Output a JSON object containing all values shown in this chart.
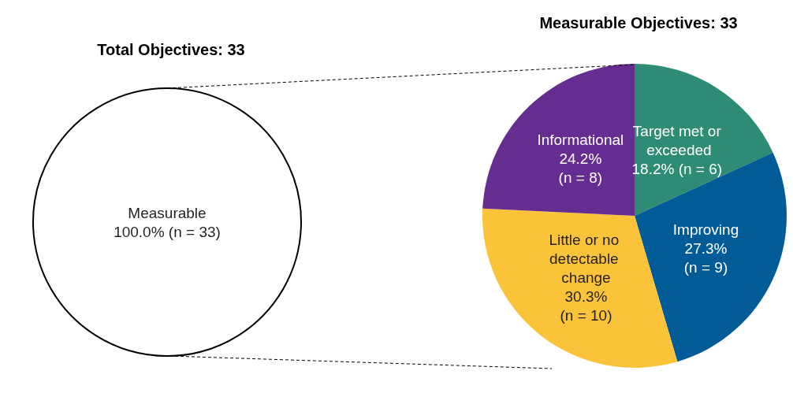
{
  "chart_data": [
    {
      "type": "pie",
      "title": "Total Objectives: 33",
      "categories": [
        "Measurable"
      ],
      "values": [
        33
      ],
      "value_labels": [
        "100.0% (n = 33)"
      ],
      "colors": [
        "#ffffff"
      ],
      "legend": false
    },
    {
      "type": "pie",
      "title": "Measurable Objectives: 33",
      "categories": [
        "Target met or exceeded",
        "Improving",
        "Little or no detectable change",
        "Informational"
      ],
      "values": [
        6,
        9,
        10,
        8
      ],
      "value_labels": [
        "18.2% (n = 6)",
        "27.3% (n = 9)",
        "30.3% (n = 10)",
        "24.2% (n = 8)"
      ],
      "colors": [
        "#2e8b74",
        "#005b96",
        "#fbc33a",
        "#652d90"
      ],
      "legend": false
    }
  ]
}
